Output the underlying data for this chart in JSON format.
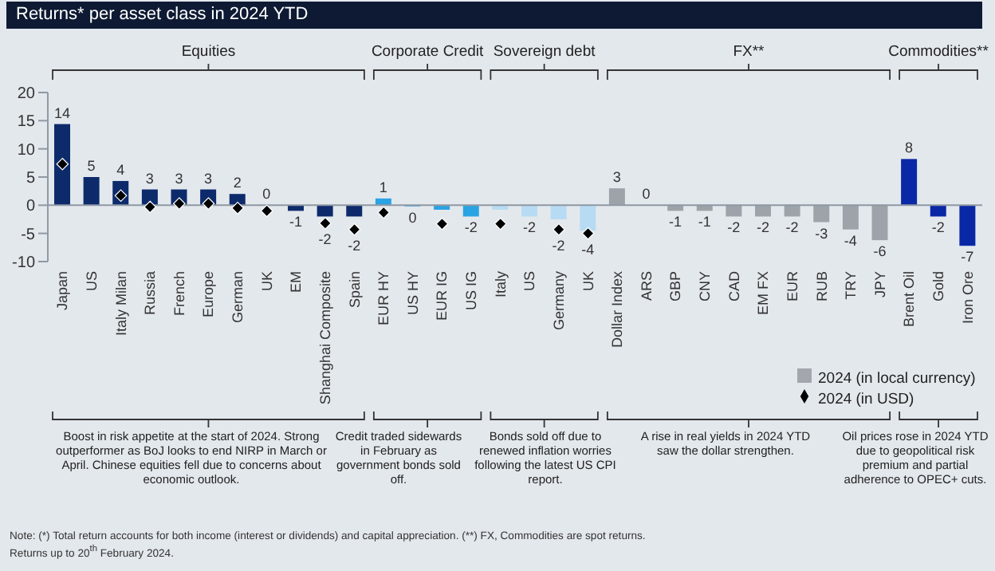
{
  "chart_data": {
    "type": "bar",
    "title": "Returns* per asset class in 2024 YTD",
    "categories": [
      "Japan",
      "US",
      "Italy Milan",
      "Russia",
      "French",
      "Europe",
      "German",
      "UK",
      "EM",
      "Shanghai Composite",
      "Spain",
      "EUR HY",
      "US HY",
      "EUR IG",
      "US IG",
      "Italy",
      "US",
      "Germany",
      "UK",
      "Dollar Index",
      "ARS",
      "GBP",
      "CNY",
      "CAD",
      "EM FX",
      "EUR",
      "RUB",
      "TRY",
      "JPY",
      "Brent Oil",
      "Gold",
      "Iron Ore"
    ],
    "series": [
      {
        "name": "2024 (in local currency)",
        "color": "#a3a7ad",
        "colors": [
          "#0d2b6b",
          "#0d2b6b",
          "#0d2b6b",
          "#0d2b6b",
          "#0d2b6b",
          "#0d2b6b",
          "#0d2b6b",
          "#0d2b6b",
          "#0d2b6b",
          "#0d2b6b",
          "#0d2b6b",
          "#2aa3e3",
          "#2aa3e3",
          "#2aa3e3",
          "#2aa3e3",
          "#b7dbf3",
          "#b7dbf3",
          "#b7dbf3",
          "#b7dbf3",
          "#9ea3aa",
          "#9ea3aa",
          "#9ea3aa",
          "#9ea3aa",
          "#9ea3aa",
          "#9ea3aa",
          "#9ea3aa",
          "#9ea3aa",
          "#9ea3aa",
          "#9ea3aa",
          "#0a28a5",
          "#0a28a5",
          "#0a28a5"
        ],
        "values": [
          14.4,
          5,
          4.3,
          2.8,
          2.8,
          2.8,
          2,
          0,
          -1,
          -2,
          -2,
          1.2,
          -0.2,
          -0.8,
          -2,
          -0.8,
          -2,
          -2.5,
          -4.5,
          3,
          0,
          -1,
          -1,
          -2,
          -2,
          -2,
          -3,
          -4.3,
          -6.2,
          8.2,
          -2,
          -7.2
        ],
        "value_labels": [
          "14",
          "5",
          "4",
          "3",
          "3",
          "3",
          "2",
          "0",
          "-1",
          "-2",
          "-2",
          "1",
          "0",
          null,
          "-2",
          null,
          "-2",
          "-2",
          "-4",
          "3",
          "0",
          "-1",
          "-1",
          "-2",
          "-2",
          "-2",
          "-3",
          "-4",
          "-6",
          "8",
          "-2",
          "-7"
        ]
      },
      {
        "name": "2024 (in USD)",
        "type": "scatter",
        "color": "#000000",
        "marker": "diamond",
        "values": [
          7.3,
          null,
          1.7,
          -0.3,
          0.3,
          0.3,
          -0.5,
          -1,
          null,
          -3.2,
          -4.3,
          -1.3,
          null,
          -3.3,
          null,
          -3.3,
          null,
          -4.3,
          -5,
          null,
          null,
          null,
          null,
          null,
          null,
          null,
          null,
          null,
          null,
          null,
          null,
          null
        ]
      }
    ],
    "ylim": [
      -10,
      20
    ],
    "yticks": [
      -10,
      -5,
      0,
      5,
      10,
      15,
      20
    ],
    "ref_lines": [
      {
        "axis": "y",
        "value": 0,
        "color": "#8f99a3"
      }
    ],
    "legend": "bottom right",
    "annotations": [
      "Equities",
      "Corporate Credit",
      "Sovereign debt",
      "FX**",
      "Commodities**",
      "Boost in risk appetite at the start of 2024. Strong outperformer as BoJ looks to end NIRP in March or April. Chinese equities fell due to concerns about economic outlook.",
      "Credit traded sidewards in February as government bonds sold off.",
      "Bonds sold off due to renewed inflation worries following the latest US CPI report.",
      "A rise in real yields in 2024 YTD saw the dollar strengthen.",
      "Oil prices rose in 2024 YTD due to geopolitical risk premium and partial adherence to OPEC+ cuts.",
      "Note: (*) Total return accounts for both income (interest or dividends) and capital appreciation. (**) FX, Commodities are spot returns.",
      "Returns up to 20$^{th}$ February 2024."
    ]
  }
}
